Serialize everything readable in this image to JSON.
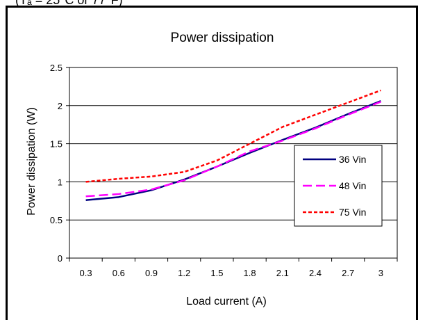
{
  "header_caption": "(Tₐ = 25°C or 77°F)",
  "chart_data": {
    "type": "line",
    "title": "Power dissipation",
    "xlabel": "Load current (A)",
    "ylabel": "Power dissipation (W)",
    "x": [
      0.3,
      0.6,
      0.9,
      1.2,
      1.5,
      1.8,
      2.1,
      2.4,
      2.7,
      3.0
    ],
    "x_tick_labels": [
      "0.3",
      "0.6",
      "0.9",
      "1.2",
      "1.5",
      "1.8",
      "2.1",
      "2.4",
      "2.7",
      "3"
    ],
    "y_ticks": [
      0,
      0.5,
      1,
      1.5,
      2,
      2.5
    ],
    "y_tick_labels": [
      "0",
      "0.5",
      "1",
      "1.5",
      "2",
      "2.5"
    ],
    "ylim": [
      0,
      2.5
    ],
    "grid": "horizontal",
    "legend_position": "right",
    "series": [
      {
        "name": "36 Vin",
        "color": "#000080",
        "style": "solid",
        "values": [
          0.76,
          0.8,
          0.89,
          1.03,
          1.2,
          1.38,
          1.55,
          1.71,
          1.89,
          2.06
        ]
      },
      {
        "name": "48 Vin",
        "color": "#ff00ff",
        "style": "dashed",
        "values": [
          0.81,
          0.84,
          0.9,
          1.02,
          1.2,
          1.4,
          1.54,
          1.7,
          1.88,
          2.05
        ]
      },
      {
        "name": "75 Vin",
        "color": "#ff0000",
        "style": "dotted",
        "values": [
          1.0,
          1.04,
          1.07,
          1.13,
          1.28,
          1.5,
          1.72,
          1.88,
          2.04,
          2.2
        ]
      }
    ]
  }
}
